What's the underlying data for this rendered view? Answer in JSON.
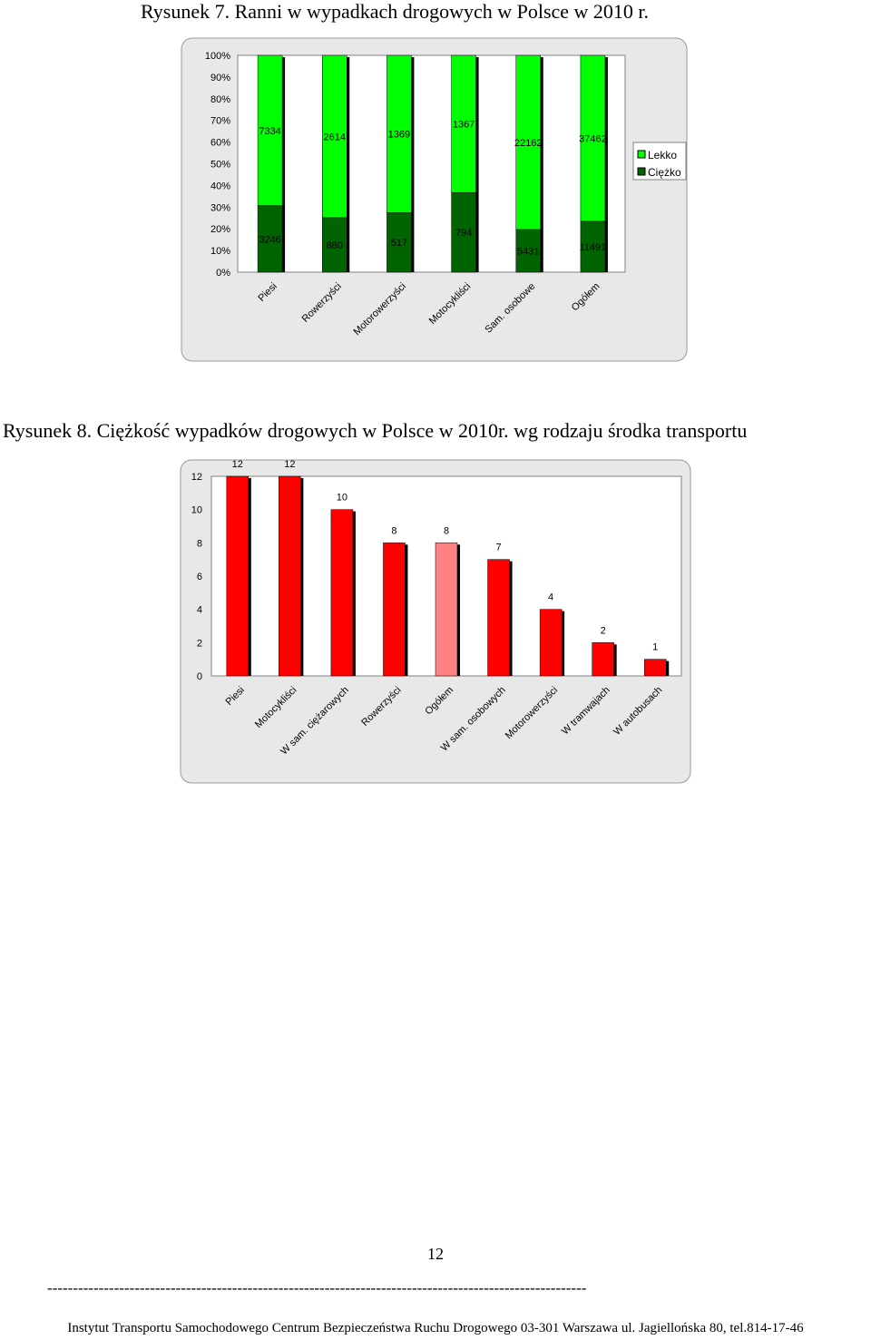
{
  "page": {
    "number": "12",
    "separator": "---------------------------------------------------------------------------------------------------------",
    "footer": "Instytut Transportu Samochodowego Centrum Bezpieczeństwa Ruchu Drogowego 03-301 Warszawa ul. Jagiellońska 80, tel.814-17-46"
  },
  "chart_data": [
    {
      "type": "bar",
      "stacked": "percent",
      "title": "Rysunek 7. Ranni w wypadkach drogowych w Polsce w 2010 r.",
      "categories": [
        "Piesi",
        "Rowerzyści",
        "Motorowerzyści",
        "Motocykliści",
        "Sam. osobowe",
        "Ogółem"
      ],
      "series": [
        {
          "name": "Ciężko",
          "values": [
            3246,
            880,
            517,
            794,
            5431,
            11491
          ],
          "color": "#006400"
        },
        {
          "name": "Lekko",
          "values": [
            7334,
            2614,
            1369,
            1367,
            22162,
            37462
          ],
          "color": "#00ff00"
        }
      ],
      "yticks": [
        "0%",
        "10%",
        "20%",
        "30%",
        "40%",
        "50%",
        "60%",
        "70%",
        "80%",
        "90%",
        "100%"
      ],
      "ylim": [
        0,
        100
      ],
      "legend": "right"
    },
    {
      "type": "bar",
      "title": "Rysunek 8. Ciężkość wypadków drogowych w Polsce w 2010r. wg rodzaju środka transportu",
      "categories": [
        "Piesi",
        "Motocykliści",
        "W sam. ciężarowych",
        "Rowerzyści",
        "Ogółem",
        "W sam. osobowych",
        "Motorowerzyści",
        "W tramwajach",
        "W autobusach"
      ],
      "values": [
        12,
        12,
        10,
        8,
        8,
        7,
        4,
        2,
        1
      ],
      "colors": [
        "#ff0000",
        "#ff0000",
        "#ff0000",
        "#ff0000",
        "#ff8080",
        "#ff0000",
        "#ff0000",
        "#ff0000",
        "#ff0000"
      ],
      "yticks": [
        "0",
        "2",
        "4",
        "6",
        "8",
        "10",
        "12"
      ],
      "ylim": [
        0,
        12
      ]
    }
  ]
}
